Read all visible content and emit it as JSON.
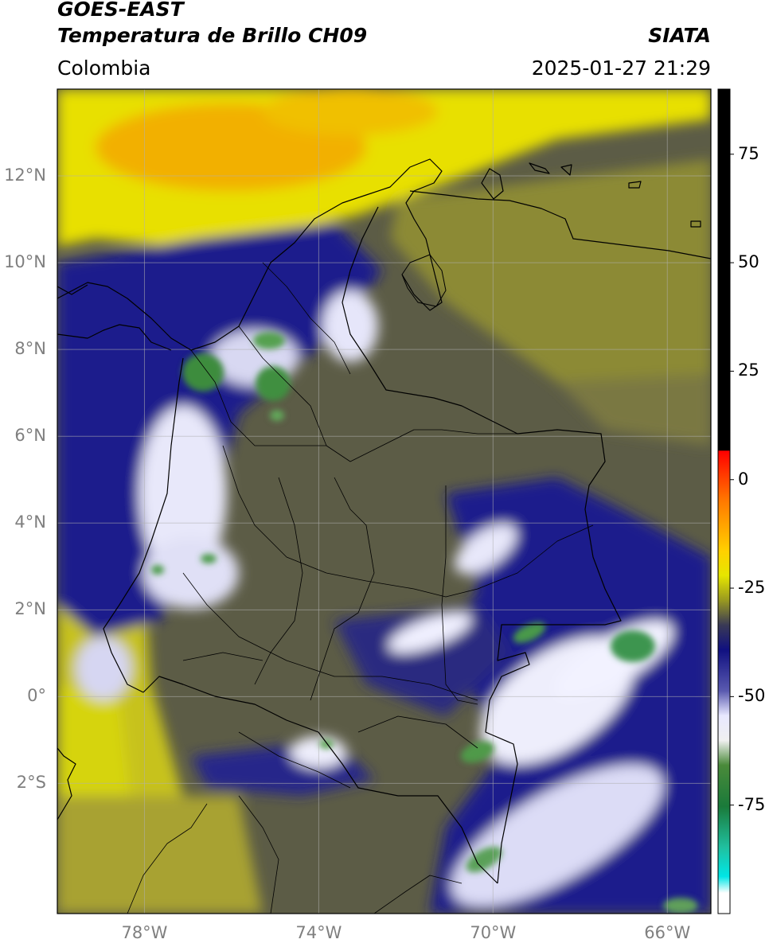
{
  "header": {
    "satellite": "GOES-EAST",
    "product": "Temperatura de Brillo CH09",
    "region": "Colombia",
    "source": "SIATA",
    "datetime": "2025-01-27 21:29"
  },
  "map": {
    "lon_range": [
      -80,
      -65
    ],
    "lat_range": [
      -5,
      14
    ],
    "lat_ticks": [
      {
        "value": 12,
        "label": "12°N"
      },
      {
        "value": 10,
        "label": "10°N"
      },
      {
        "value": 8,
        "label": "8°N"
      },
      {
        "value": 6,
        "label": "6°N"
      },
      {
        "value": 4,
        "label": "4°N"
      },
      {
        "value": 2,
        "label": "2°N"
      },
      {
        "value": 0,
        "label": "0°"
      },
      {
        "value": -2,
        "label": "2°S"
      }
    ],
    "lon_ticks": [
      {
        "value": -78,
        "label": "78°W"
      },
      {
        "value": -74,
        "label": "74°W"
      },
      {
        "value": -70,
        "label": "70°W"
      },
      {
        "value": -66,
        "label": "66°W"
      }
    ],
    "colors": {
      "warm_yellow": "#e8e000",
      "orange": "#f5a800",
      "olive": "#8a8a30",
      "gray": "#5e5e48",
      "navy": "#1a1a8c",
      "white": "#f2f2ff",
      "green": "#3d8c3d"
    }
  },
  "colorbar": {
    "range": [
      -100,
      90
    ],
    "ticks": [
      {
        "value": 75,
        "label": "75"
      },
      {
        "value": 50,
        "label": "50"
      },
      {
        "value": 25,
        "label": "25"
      },
      {
        "value": 0,
        "label": "0"
      },
      {
        "value": -25,
        "label": "-25"
      },
      {
        "value": -50,
        "label": "-50"
      },
      {
        "value": -75,
        "label": "-75"
      }
    ]
  }
}
